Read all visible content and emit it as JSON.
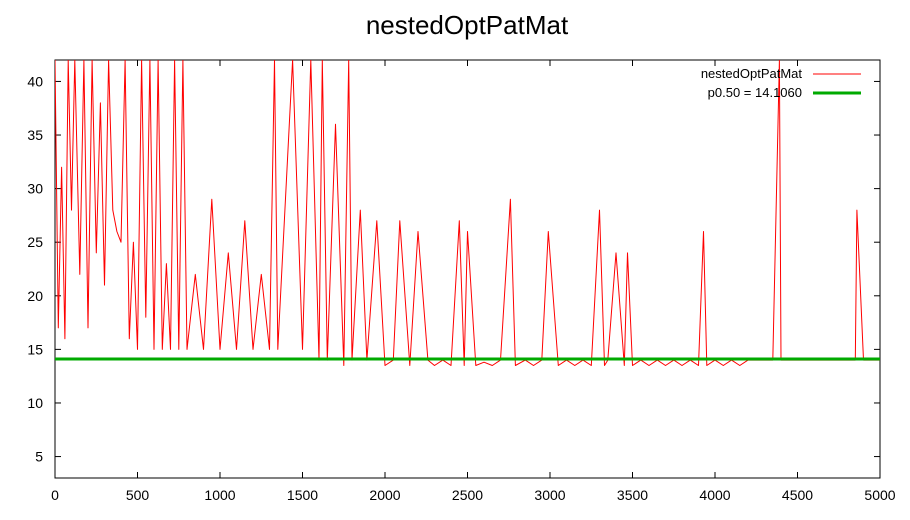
{
  "chart_data": {
    "type": "line",
    "title": "nestedOptPatMat",
    "xlabel": "",
    "ylabel": "",
    "xlim": [
      0,
      5000
    ],
    "ylim": [
      3,
      42
    ],
    "x_ticks": [
      0,
      500,
      1000,
      1500,
      2000,
      2500,
      3000,
      3500,
      4000,
      4500,
      5000
    ],
    "y_ticks": [
      5,
      10,
      15,
      20,
      25,
      30,
      35,
      40
    ],
    "grid": false,
    "legend_position": "top-right",
    "series": [
      {
        "name": "nestedOptPatMat",
        "color": "#ff0000",
        "style": "thin-line",
        "x": [
          0,
          20,
          40,
          60,
          80,
          100,
          120,
          150,
          175,
          200,
          225,
          250,
          275,
          300,
          325,
          350,
          375,
          400,
          425,
          450,
          475,
          500,
          525,
          550,
          575,
          600,
          625,
          650,
          675,
          700,
          725,
          750,
          775,
          800,
          850,
          900,
          950,
          1000,
          1050,
          1100,
          1150,
          1200,
          1250,
          1300,
          1330,
          1350,
          1400,
          1440,
          1500,
          1550,
          1600,
          1620,
          1650,
          1700,
          1750,
          1780,
          1800,
          1850,
          1890,
          1950,
          2000,
          2050,
          2090,
          2150,
          2200,
          2260,
          2300,
          2350,
          2400,
          2450,
          2480,
          2500,
          2550,
          2600,
          2650,
          2700,
          2760,
          2790,
          2850,
          2900,
          2950,
          2990,
          3050,
          3100,
          3150,
          3200,
          3250,
          3300,
          3330,
          3350,
          3400,
          3450,
          3470,
          3500,
          3550,
          3600,
          3650,
          3700,
          3750,
          3800,
          3850,
          3900,
          3930,
          3950,
          4000,
          4050,
          4100,
          4150,
          4200,
          4250,
          4300,
          4350,
          4390,
          4400,
          4450,
          4500,
          4550,
          4600,
          4650,
          4700,
          4750,
          4800,
          4850,
          4860,
          4900,
          4950,
          5000
        ],
        "y": [
          42,
          17,
          32,
          16,
          42,
          28,
          42,
          22,
          42,
          17,
          42,
          24,
          38,
          21,
          42,
          28,
          26,
          25,
          42,
          16,
          25,
          15,
          42,
          18,
          42,
          15,
          42,
          15,
          23,
          15,
          42,
          15,
          42,
          15,
          22,
          15,
          29,
          15,
          24,
          15,
          27,
          15,
          22,
          15,
          42,
          15,
          30,
          42,
          15,
          42,
          14,
          42,
          14,
          36,
          13.5,
          42,
          14,
          28,
          14,
          27,
          13.5,
          14,
          27,
          13.5,
          26,
          14,
          13.5,
          14,
          13.5,
          27,
          13.5,
          26,
          13.5,
          13.8,
          13.5,
          14,
          29,
          13.5,
          14,
          13.5,
          14,
          26,
          13.5,
          14,
          13.5,
          14,
          13.5,
          28,
          13.5,
          14,
          24,
          13.5,
          24,
          13.5,
          14,
          13.5,
          14,
          13.5,
          14,
          13.5,
          14,
          13.5,
          26,
          13.5,
          14,
          13.5,
          14,
          13.5,
          14,
          14,
          14,
          14,
          42,
          14,
          14,
          14,
          14,
          14,
          14,
          14,
          14,
          14,
          14,
          28,
          14,
          14,
          14
        ]
      },
      {
        "name": "p0.50 = 14.1060",
        "color": "#00aa00",
        "style": "thick-line",
        "x": [
          0,
          5000
        ],
        "y": [
          14.106,
          14.106
        ]
      }
    ]
  }
}
